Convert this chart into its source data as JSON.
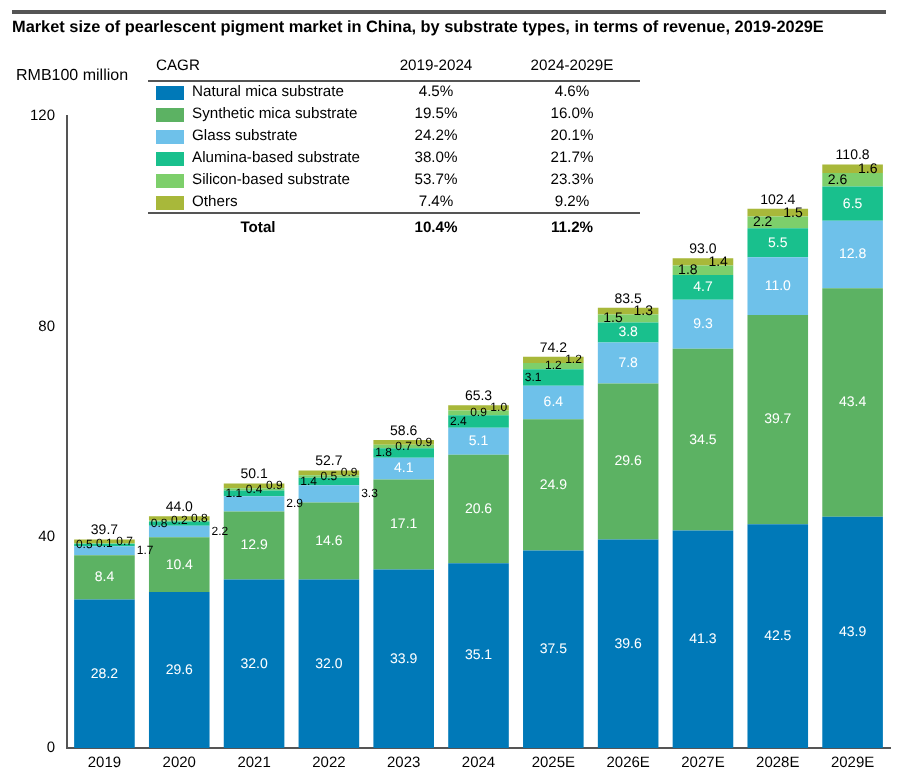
{
  "chart_data": {
    "type": "bar",
    "stacked": true,
    "title": "Market size of pearlescent pigment market in China, by substrate types, in terms of revenue, 2019-2029E",
    "ylabel": "RMB100 million",
    "categories": [
      "2019",
      "2020",
      "2021",
      "2022",
      "2023",
      "2024",
      "2025E",
      "2026E",
      "2027E",
      "2028E",
      "2029E"
    ],
    "series": [
      {
        "name": "Natural mica substrate",
        "color": "#0079b8",
        "values": [
          28.2,
          29.6,
          32.0,
          32.0,
          33.9,
          35.1,
          37.5,
          39.6,
          41.3,
          42.5,
          43.9
        ],
        "value_labels": [
          "28.2",
          "29.6",
          "32.0",
          "32.0",
          "33.9",
          "35.1",
          "37.5",
          "39.6",
          "41.3",
          "42.5",
          "43.9"
        ]
      },
      {
        "name": "Synthetic mica substrate",
        "color": "#5cb263",
        "values": [
          8.4,
          10.4,
          12.9,
          14.6,
          17.1,
          20.6,
          24.9,
          29.6,
          34.5,
          39.7,
          43.4
        ],
        "value_labels": [
          "8.4",
          "10.4",
          "12.9",
          "14.6",
          "17.1",
          "20.6",
          "24.9",
          "29.6",
          "34.5",
          "39.7",
          "43.4"
        ]
      },
      {
        "name": "Glass substrate",
        "color": "#6ec1ea",
        "values": [
          1.7,
          2.2,
          2.9,
          3.3,
          4.1,
          5.1,
          6.4,
          7.8,
          9.3,
          11.0,
          12.8
        ],
        "value_labels": [
          "1.7",
          "2.2",
          "2.9",
          "3.3",
          "4.1",
          "5.1",
          "6.4",
          "7.8",
          "9.3",
          "11.0",
          "12.8"
        ]
      },
      {
        "name": "Alumina-based substrate",
        "color": "#19c08d",
        "values": [
          0.5,
          0.8,
          1.1,
          1.4,
          1.8,
          2.4,
          3.1,
          3.8,
          4.7,
          5.5,
          6.5
        ],
        "value_labels": [
          "0.5",
          "0.8",
          "1.1",
          "1.4",
          "1.8",
          "2.4",
          "3.1",
          "3.8",
          "4.7",
          "5.5",
          "6.5"
        ]
      },
      {
        "name": "Silicon-based substrate",
        "color": "#7dcf6b",
        "values": [
          0.1,
          0.2,
          0.4,
          0.5,
          0.7,
          0.9,
          1.2,
          1.5,
          1.8,
          2.2,
          2.6
        ],
        "value_labels": [
          "0.1",
          "0.2",
          "0.4",
          "0.5",
          "0.7",
          "0.9",
          "1.2",
          "1.5",
          "1.8",
          "2.2",
          "2.6"
        ]
      },
      {
        "name": "Others",
        "color": "#a8b83a",
        "values": [
          0.7,
          0.8,
          0.9,
          0.9,
          0.9,
          1.0,
          1.2,
          1.3,
          1.4,
          1.5,
          1.6
        ],
        "value_labels": [
          "0.7",
          "0.8",
          "0.9",
          "0.9",
          "0.9",
          "1.0",
          "1.2",
          "1.3",
          "1.4",
          "1.5",
          "1.6"
        ]
      }
    ],
    "totals": [
      "39.7",
      "44.0",
      "50.1",
      "52.7",
      "58.6",
      "65.3",
      "74.2",
      "83.5",
      "93.0",
      "102.4",
      "110.8"
    ],
    "ylim": [
      0,
      120
    ],
    "yticks": [
      0,
      40,
      80,
      120
    ],
    "grid": false,
    "legend": "top left",
    "annotations": [
      "CAGR",
      "2019-2024",
      "2024-2029E",
      "4.5%",
      "4.6%",
      "19.5%",
      "16.0%",
      "24.2%",
      "20.1%",
      "38.0%",
      "21.7%",
      "53.7%",
      "23.3%",
      "7.4%",
      "9.2%",
      "Total",
      "10.4%",
      "11.2%"
    ]
  }
}
